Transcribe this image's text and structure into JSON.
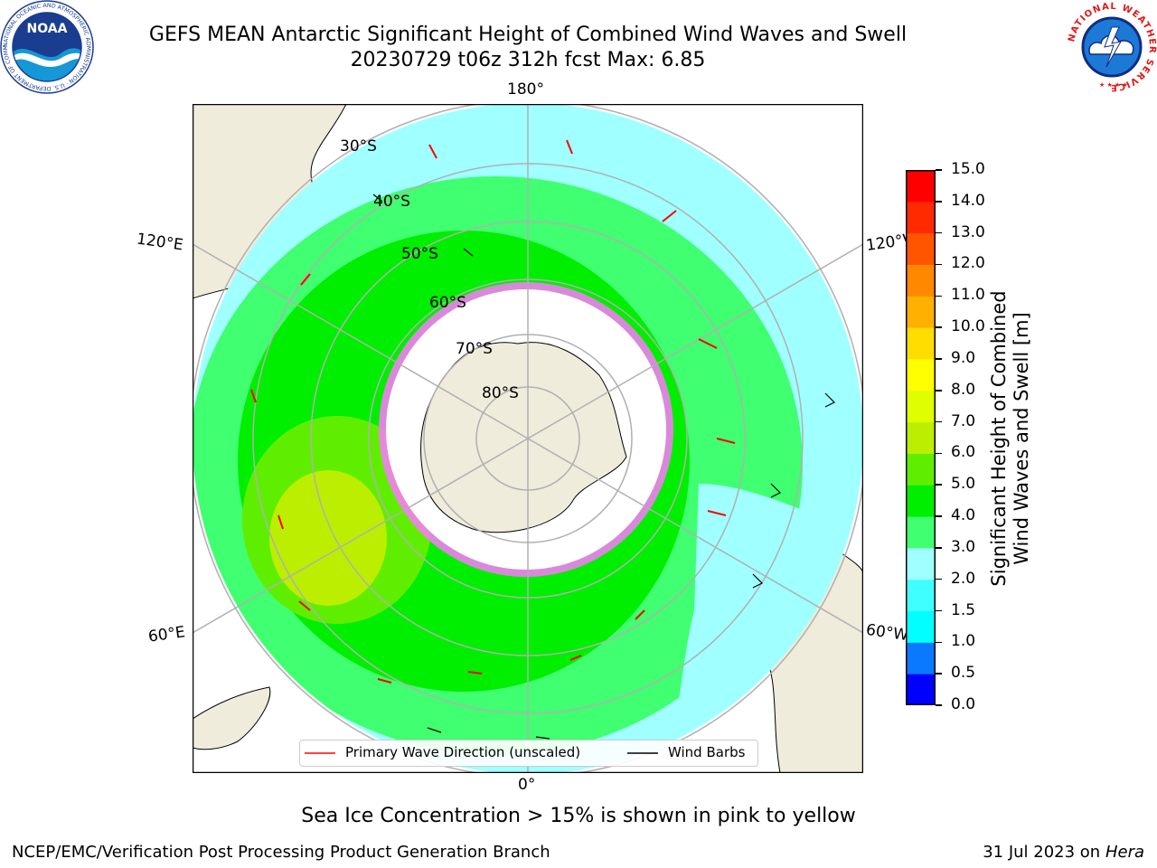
{
  "header": {
    "title_line1": "GEFS MEAN Antarctic Significant Height of Combined Wind Waves and Swell",
    "title_line2": "20230729 t06z 312h fcst   Max: 6.85"
  },
  "logos": {
    "noaa_text": "NOAA",
    "noaa_ring_text": "NATIONAL OCEANIC AND ATMOSPHERIC ADMINISTRATION · U.S. DEPARTMENT OF COMMERCE",
    "nws_ring_text": "NATIONAL WEATHER SERVICE"
  },
  "map": {
    "longitude_labels": {
      "top": "180°",
      "bottom": "0°",
      "upper_left": "120°E",
      "upper_right": "120°W",
      "lower_left": "60°E",
      "lower_right": "60°W"
    },
    "latitude_labels": [
      "30°S",
      "40°S",
      "50°S",
      "60°S",
      "70°S",
      "80°S"
    ],
    "colors": {
      "land": "#efecdc",
      "ice": "#ffffff",
      "ocean_frame": "#ffffff",
      "wave_arrow": "#ff0000",
      "wind_barb": "#000000",
      "grid": "#b0b0b0"
    }
  },
  "colorbar": {
    "label_line1": "Significant Height of Combined",
    "label_line2": "Wind Waves and Swell [m]",
    "ticks": [
      "15.0",
      "14.0",
      "13.0",
      "12.0",
      "11.0",
      "10.0",
      "9.0",
      "8.0",
      "7.0",
      "6.0",
      "5.0",
      "4.0",
      "3.0",
      "2.0",
      "1.5",
      "1.0",
      "0.5",
      "0.0"
    ],
    "colors_bottom_to_top": [
      "#0000ff",
      "#0a78ff",
      "#00ffff",
      "#40ffff",
      "#a0ffff",
      "#40ff70",
      "#00ee00",
      "#60ee00",
      "#bbee00",
      "#dfff00",
      "#ffff00",
      "#ffdd00",
      "#ffb000",
      "#ff8800",
      "#ff5500",
      "#ff2a00",
      "#ff0000"
    ]
  },
  "legend": {
    "wave_label": "Primary Wave Direction (unscaled)",
    "wind_label": "Wind Barbs"
  },
  "notes": {
    "sea_ice": "Sea Ice Concentration > 15% is shown in pink to yellow"
  },
  "footer": {
    "left": "NCEP/EMC/Verification Post Processing Product Generation Branch",
    "right_prefix": "31 Jul 2023 on ",
    "right_host": "Hera"
  }
}
